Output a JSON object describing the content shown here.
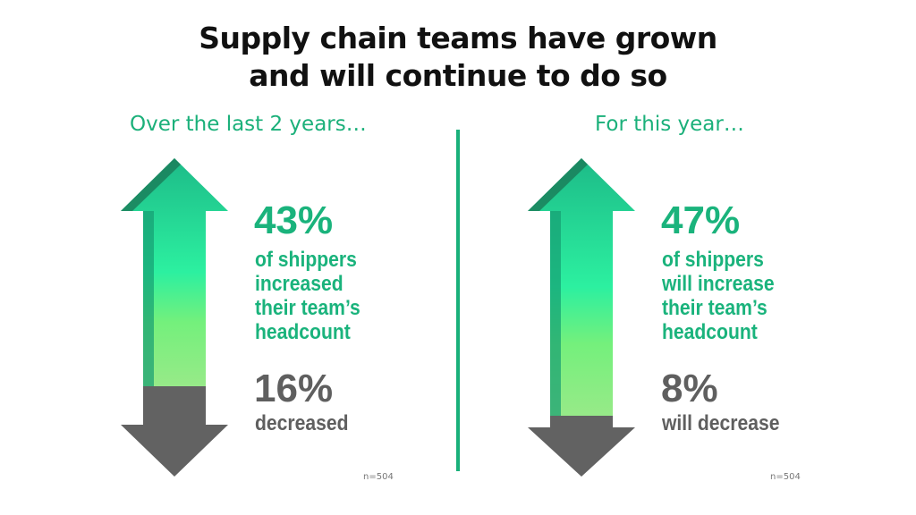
{
  "title_line1": "Supply chain teams have grown",
  "title_line2": "and will continue to do so",
  "left": {
    "subtitle": "Over the last 2 years…",
    "increase_pct": "43%",
    "increase_text": [
      "of shippers",
      "increased",
      "their team’s",
      "headcount"
    ],
    "decrease_pct": "16%",
    "decrease_text": "decreased",
    "sample": "n=504"
  },
  "right": {
    "subtitle": "For this year…",
    "increase_pct": "47%",
    "increase_text": [
      "of shippers",
      "will increase",
      "their team’s",
      "headcount"
    ],
    "decrease_pct": "8%",
    "decrease_text": "will decrease",
    "sample": "n=504"
  },
  "colors": {
    "green": "#1ab37c",
    "gray": "#5f5f5f",
    "gradient_top": "#1dbb88",
    "gradient_mid": "#2cf0a0",
    "gradient_bottom": "#93ea84"
  }
}
